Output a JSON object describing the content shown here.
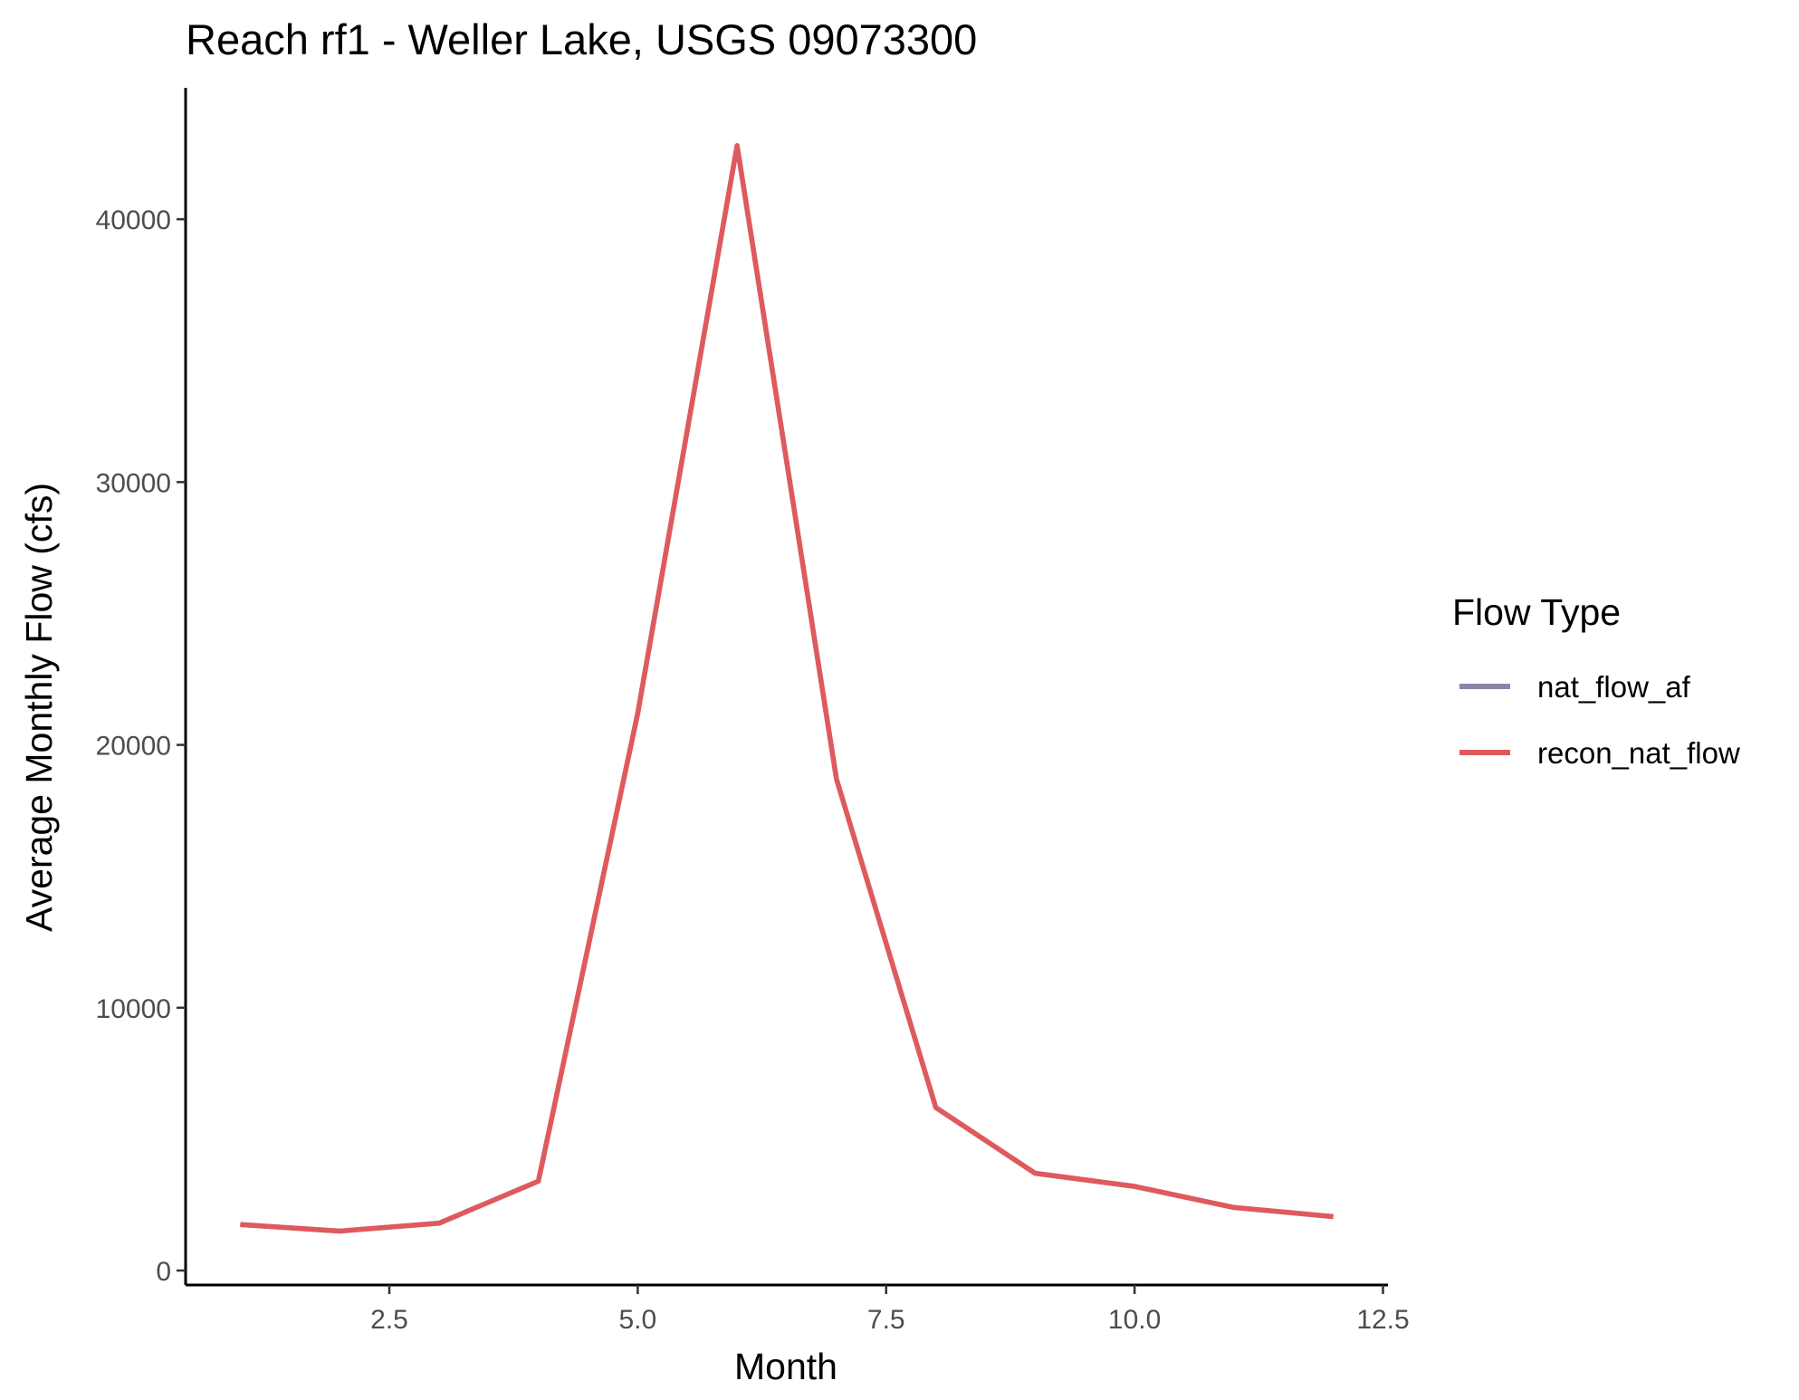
{
  "chart_data": {
    "type": "line",
    "title": "Reach rf1 - Weller Lake, USGS 09073300",
    "xlabel": "Month",
    "ylabel": "Average Monthly Flow (cfs)",
    "xlim": [
      0.45,
      12.55
    ],
    "ylim": [
      -550,
      45000
    ],
    "xticks": [
      2.5,
      5.0,
      7.5,
      10.0,
      12.5
    ],
    "xtick_labels": [
      "2.5",
      "5.0",
      "7.5",
      "10.0",
      "12.5"
    ],
    "yticks": [
      0,
      10000,
      20000,
      30000,
      40000
    ],
    "ytick_labels": [
      "0",
      "10000",
      "20000",
      "30000",
      "40000"
    ],
    "grid": false,
    "legend": {
      "title": "Flow Type",
      "placement": "right"
    },
    "series": [
      {
        "name": "nat_flow_af",
        "color": "#8a86aa",
        "x": [
          1,
          2,
          3,
          4,
          5,
          6,
          7,
          8,
          9,
          10,
          11,
          12
        ],
        "y": [
          1750,
          1500,
          1800,
          3400,
          21200,
          42800,
          18700,
          6200,
          3700,
          3200,
          2400,
          2050
        ]
      },
      {
        "name": "recon_nat_flow",
        "color": "#e05a5c",
        "x": [
          1,
          2,
          3,
          4,
          5,
          6,
          7,
          8,
          9,
          10,
          11,
          12
        ],
        "y": [
          1750,
          1500,
          1800,
          3400,
          21200,
          42800,
          18700,
          6200,
          3700,
          3200,
          2400,
          2050
        ]
      }
    ]
  }
}
